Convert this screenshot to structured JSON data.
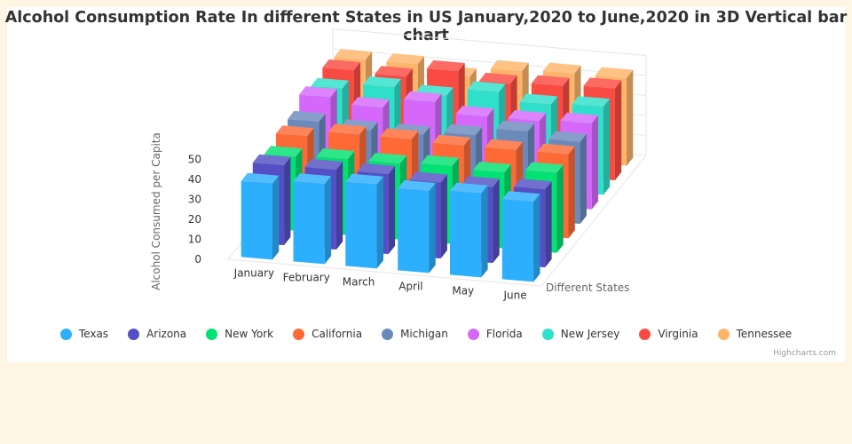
{
  "chart_data": {
    "type": "bar",
    "title": "Alcohol Consumption Rate In different States in US January,2020 to June,2020 in 3D Vertical bar chart",
    "ylabel": "Alcohol Consumed per Capita",
    "zlabel": "Different States",
    "ylim": [
      0,
      50
    ],
    "yticks": [
      0,
      10,
      20,
      30,
      40,
      50
    ],
    "categories": [
      "January",
      "February",
      "March",
      "April",
      "May",
      "June"
    ],
    "legend_position": "bottom",
    "series": [
      {
        "name": "Texas",
        "color": "#2caffe",
        "values": [
          38,
          40,
          42,
          41,
          42,
          40
        ]
      },
      {
        "name": "Arizona",
        "color": "#544fc5",
        "values": [
          40,
          40,
          40,
          38,
          38,
          39
        ]
      },
      {
        "name": "New York",
        "color": "#00e272",
        "values": [
          37,
          38,
          38,
          39,
          38,
          40
        ]
      },
      {
        "name": "California",
        "color": "#fe6a35",
        "values": [
          40,
          43,
          43,
          42,
          42,
          42
        ]
      },
      {
        "name": "Michigan",
        "color": "#6b8abc",
        "values": [
          40,
          38,
          38,
          40,
          44,
          41
        ]
      },
      {
        "name": "Florida",
        "color": "#d568fb",
        "values": [
          45,
          42,
          47,
          42,
          42,
          43
        ]
      },
      {
        "name": "New Jersey",
        "color": "#2ee0ca",
        "values": [
          42,
          45,
          43,
          47,
          43,
          44
        ]
      },
      {
        "name": "Virginia",
        "color": "#fa4b42",
        "values": [
          44,
          43,
          48,
          44,
          45,
          46
        ]
      },
      {
        "name": "Tennessee",
        "color": "#feb56a",
        "values": [
          42,
          42,
          38,
          43,
          44,
          44
        ]
      }
    ]
  },
  "credit": "Highcharts.com"
}
